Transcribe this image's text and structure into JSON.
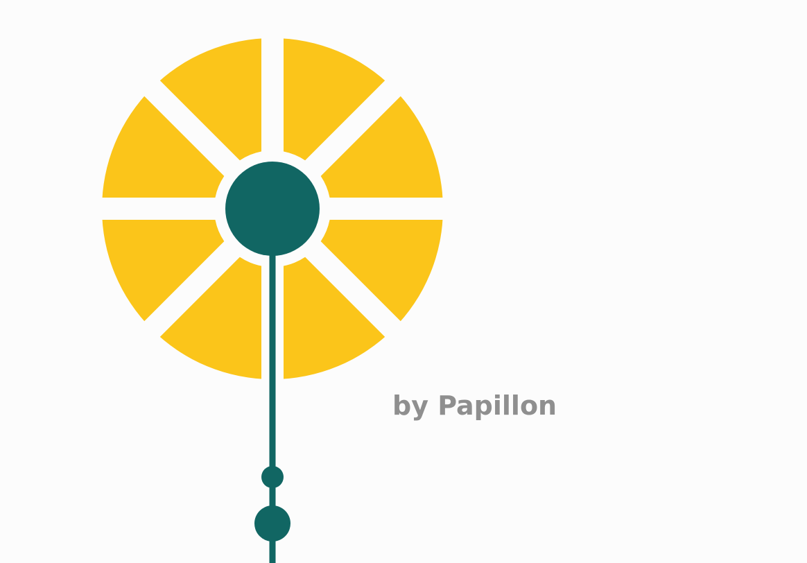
{
  "tagline": "by Papillon",
  "colors": {
    "background": "#fcfcfc",
    "petal": "#fbc51a",
    "center": "#116663",
    "text": "#8f8f8f"
  },
  "icons": {
    "logo": "dandelion-wheel-icon"
  }
}
